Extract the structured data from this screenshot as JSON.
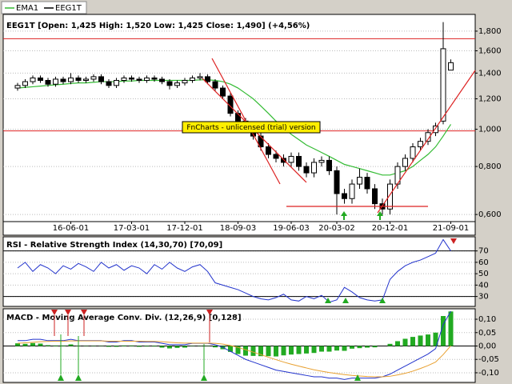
{
  "chart_data": [
    {
      "type": "candlestick",
      "title": "EEG1T [Open: 1,425  High: 1,520  Low: 1,425  Close: 1,490] (+4,56%)",
      "annotation": "FnCharts - unlicensed (trial) version",
      "categories": [
        null,
        null,
        null,
        null,
        null,
        null,
        null,
        "16-06-01",
        null,
        null,
        null,
        null,
        null,
        null,
        null,
        "17-03-01",
        null,
        null,
        null,
        null,
        null,
        null,
        "17-12-01",
        null,
        null,
        null,
        null,
        null,
        null,
        "18-09-03",
        null,
        null,
        null,
        null,
        null,
        null,
        "19-06-03",
        null,
        null,
        null,
        null,
        null,
        "20-03-02",
        null,
        null,
        null,
        null,
        null,
        null,
        "20-12-01",
        null,
        null,
        null,
        null,
        null,
        null,
        null,
        "21-09-01"
      ],
      "candles": {
        "name": "EEG1T",
        "color": "#000000",
        "open": [
          1.28,
          1.3,
          1.33,
          1.36,
          1.34,
          1.31,
          1.35,
          1.33,
          1.36,
          1.34,
          1.35,
          1.37,
          1.33,
          1.3,
          1.34,
          1.36,
          1.35,
          1.34,
          1.36,
          1.35,
          1.33,
          1.3,
          1.32,
          1.34,
          1.36,
          1.37,
          1.33,
          1.28,
          1.22,
          1.1,
          1.05,
          1.0,
          0.96,
          0.9,
          0.86,
          0.84,
          0.82,
          0.85,
          0.8,
          0.77,
          0.82,
          0.83,
          0.78,
          0.68,
          0.66,
          0.72,
          0.75,
          0.7,
          0.64,
          0.62,
          0.72,
          0.8,
          0.84,
          0.9,
          0.93,
          0.98,
          1.05,
          1.425
        ],
        "high": [
          1.32,
          1.35,
          1.38,
          1.38,
          1.36,
          1.37,
          1.37,
          1.4,
          1.38,
          1.37,
          1.39,
          1.39,
          1.35,
          1.36,
          1.38,
          1.38,
          1.37,
          1.38,
          1.38,
          1.37,
          1.35,
          1.34,
          1.36,
          1.38,
          1.4,
          1.39,
          1.35,
          1.3,
          1.24,
          1.12,
          1.07,
          1.02,
          0.98,
          0.92,
          0.88,
          0.86,
          0.87,
          0.87,
          0.82,
          0.84,
          0.85,
          0.85,
          0.8,
          0.7,
          0.74,
          0.79,
          0.77,
          0.72,
          0.66,
          0.74,
          0.82,
          0.86,
          0.92,
          0.95,
          1.0,
          1.04,
          1.9,
          1.52
        ],
        "low": [
          1.26,
          1.28,
          1.31,
          1.32,
          1.29,
          1.29,
          1.31,
          1.31,
          1.32,
          1.32,
          1.33,
          1.31,
          1.28,
          1.28,
          1.32,
          1.33,
          1.32,
          1.32,
          1.33,
          1.31,
          1.27,
          1.28,
          1.3,
          1.32,
          1.34,
          1.31,
          1.26,
          1.2,
          1.08,
          1.03,
          0.98,
          0.94,
          0.88,
          0.84,
          0.82,
          0.8,
          0.8,
          0.78,
          0.75,
          0.75,
          0.8,
          0.76,
          0.6,
          0.64,
          0.64,
          0.7,
          0.68,
          0.62,
          0.6,
          0.6,
          0.7,
          0.78,
          0.82,
          0.88,
          0.91,
          0.96,
          1.03,
          1.425
        ],
        "close": [
          1.3,
          1.33,
          1.36,
          1.34,
          1.31,
          1.35,
          1.33,
          1.36,
          1.34,
          1.35,
          1.37,
          1.33,
          1.3,
          1.34,
          1.36,
          1.35,
          1.34,
          1.36,
          1.35,
          1.33,
          1.3,
          1.32,
          1.34,
          1.36,
          1.37,
          1.33,
          1.28,
          1.22,
          1.1,
          1.05,
          1.0,
          0.96,
          0.9,
          0.86,
          0.84,
          0.82,
          0.85,
          0.8,
          0.77,
          0.82,
          0.83,
          0.78,
          0.68,
          0.66,
          0.72,
          0.75,
          0.7,
          0.64,
          0.62,
          0.72,
          0.8,
          0.84,
          0.9,
          0.93,
          0.98,
          1.02,
          1.62,
          1.49
        ]
      },
      "series": [
        {
          "name": "EMA1",
          "color": "#33bb33",
          "values": [
            1.28,
            1.285,
            1.29,
            1.295,
            1.3,
            1.305,
            1.31,
            1.315,
            1.32,
            1.32,
            1.325,
            1.33,
            1.33,
            1.33,
            1.335,
            1.335,
            1.34,
            1.34,
            1.34,
            1.34,
            1.34,
            1.34,
            1.34,
            1.34,
            1.345,
            1.345,
            1.34,
            1.33,
            1.31,
            1.28,
            1.24,
            1.2,
            1.15,
            1.1,
            1.05,
            1.01,
            0.97,
            0.94,
            0.91,
            0.89,
            0.87,
            0.85,
            0.83,
            0.81,
            0.8,
            0.79,
            0.78,
            0.77,
            0.76,
            0.76,
            0.77,
            0.78,
            0.8,
            0.83,
            0.86,
            0.9,
            0.96,
            1.03
          ]
        }
      ],
      "hlines": [
        1.72,
        0.99
      ],
      "hline_color": "#dd2222",
      "log_scale": true,
      "grid": true,
      "ylim": [
        0.575,
        1.99
      ],
      "yticks": [
        {
          "value": 0.6,
          "label": "0,600"
        },
        {
          "value": 0.8,
          "label": "0,800"
        },
        {
          "value": 1.0,
          "label": "1,000"
        },
        {
          "value": 1.2,
          "label": "1,200"
        },
        {
          "value": 1.4,
          "label": "1,400"
        },
        {
          "value": 1.6,
          "label": "1,600"
        },
        {
          "value": 1.8,
          "label": "1,800"
        }
      ]
    },
    {
      "type": "line",
      "title": "RSI - Relative Strength Index (14,30,70) [70,09]",
      "series": [
        {
          "color": "#2233cc",
          "values": [
            55,
            60,
            52,
            58,
            55,
            50,
            57,
            54,
            59,
            56,
            52,
            60,
            55,
            58,
            53,
            57,
            55,
            50,
            58,
            54,
            60,
            55,
            52,
            56,
            58,
            52,
            42,
            40,
            38,
            36,
            33,
            30,
            28,
            27,
            29,
            32,
            27,
            26,
            30,
            28,
            31,
            25,
            27,
            38,
            34,
            29,
            27,
            26,
            27,
            45,
            52,
            57,
            60,
            62,
            65,
            68,
            80,
            70
          ]
        }
      ],
      "levels": [
        70,
        30
      ],
      "grid": true,
      "ylim": [
        22,
        81
      ],
      "yticks": [
        30,
        40,
        50,
        60,
        70
      ]
    },
    {
      "type": "macd",
      "title": "MACD - Moving Average Conv. Div. (12,26,9) [0,128]",
      "series": [
        {
          "color": "#2233cc",
          "values": [
            0.02,
            0.02,
            0.025,
            0.025,
            0.02,
            0.02,
            0.02,
            0.025,
            0.02,
            0.02,
            0.02,
            0.02,
            0.015,
            0.015,
            0.02,
            0.02,
            0.015,
            0.015,
            0.015,
            0.01,
            0.005,
            0.005,
            0.005,
            0.01,
            0.01,
            0.01,
            0.005,
            -0.005,
            -0.02,
            -0.035,
            -0.05,
            -0.06,
            -0.07,
            -0.08,
            -0.09,
            -0.095,
            -0.1,
            -0.105,
            -0.11,
            -0.115,
            -0.115,
            -0.12,
            -0.12,
            -0.125,
            -0.12,
            -0.12,
            -0.12,
            -0.12,
            -0.115,
            -0.105,
            -0.09,
            -0.075,
            -0.06,
            -0.045,
            -0.03,
            -0.01,
            0.08,
            0.13
          ]
        },
        {
          "color": "#e8a030",
          "values": [
            0.01,
            0.012,
            0.014,
            0.016,
            0.017,
            0.018,
            0.018,
            0.019,
            0.019,
            0.019,
            0.019,
            0.019,
            0.018,
            0.018,
            0.018,
            0.018,
            0.018,
            0.017,
            0.017,
            0.016,
            0.014,
            0.012,
            0.011,
            0.011,
            0.011,
            0.011,
            0.01,
            0.007,
            0.002,
            -0.005,
            -0.014,
            -0.023,
            -0.032,
            -0.042,
            -0.051,
            -0.06,
            -0.068,
            -0.075,
            -0.082,
            -0.089,
            -0.094,
            -0.099,
            -0.103,
            -0.107,
            -0.11,
            -0.112,
            -0.114,
            -0.115,
            -0.115,
            -0.113,
            -0.108,
            -0.102,
            -0.094,
            -0.084,
            -0.073,
            -0.06,
            -0.032,
            0.001
          ]
        }
      ],
      "bars": {
        "color": "#22aa22",
        "values": [
          0.01,
          0.008,
          0.011,
          0.009,
          0.003,
          0.002,
          0.002,
          0.006,
          0.001,
          0.001,
          0.001,
          0.001,
          -0.003,
          -0.003,
          0.002,
          0.002,
          -0.003,
          -0.002,
          -0.002,
          -0.006,
          -0.009,
          -0.007,
          -0.006,
          -0.001,
          -0.001,
          -0.001,
          -0.005,
          -0.012,
          -0.022,
          -0.03,
          -0.036,
          -0.037,
          -0.038,
          -0.038,
          -0.039,
          -0.035,
          -0.032,
          -0.03,
          -0.028,
          -0.026,
          -0.021,
          -0.021,
          -0.017,
          -0.018,
          -0.01,
          -0.008,
          -0.006,
          -0.005,
          0,
          0.008,
          0.018,
          0.027,
          0.034,
          0.039,
          0.043,
          0.05,
          0.112,
          0.129
        ]
      },
      "grid": true,
      "ylim": [
        -0.13,
        0.13
      ],
      "yticks": [
        {
          "value": -0.1,
          "label": "-0,10"
        },
        {
          "value": -0.05,
          "label": "-0,05"
        },
        {
          "value": 0,
          "label": "0,00"
        },
        {
          "value": 0.05,
          "label": "0,05"
        },
        {
          "value": 0.1,
          "label": "0,10"
        }
      ]
    }
  ]
}
